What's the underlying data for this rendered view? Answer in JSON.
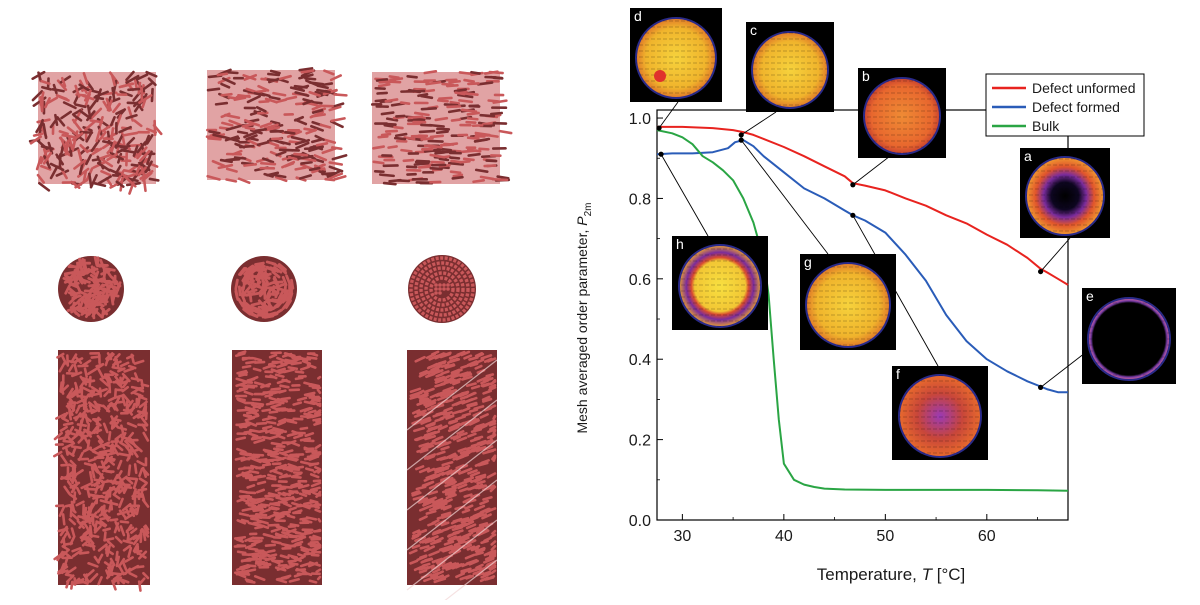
{
  "colors": {
    "rod": "#c9585a",
    "rod_dark": "#7a2e30",
    "defect_unformed": "#e8231f",
    "defect_formed": "#2a5cb8",
    "bulk": "#2aa544"
  },
  "chart_data": {
    "type": "line",
    "xlabel_text": "Temperature, ",
    "xlabel_var": "T",
    "xlabel_unit": " [°C]",
    "ylabel_text": "Mesh averaged order parameter, ",
    "ylabel_var": "P",
    "ylabel_sub": "2m",
    "xlim": [
      27.5,
      68
    ],
    "ylim": [
      0,
      1.02
    ],
    "xticks": [
      30,
      40,
      50,
      60
    ],
    "yticks": [
      0.0,
      0.2,
      0.4,
      0.6,
      0.8,
      1.0
    ],
    "legend_position": "top-right",
    "series": [
      {
        "name": "Defect unformed",
        "color_key": "defect_unformed",
        "x": [
          27.5,
          30,
          33,
          35,
          36,
          37,
          38,
          40,
          42,
          44,
          46,
          46.8,
          48,
          50,
          52,
          54,
          56,
          58,
          60,
          62,
          64,
          65.3,
          66,
          67,
          68
        ],
        "y": [
          0.978,
          0.978,
          0.975,
          0.97,
          0.965,
          0.958,
          0.948,
          0.928,
          0.905,
          0.88,
          0.855,
          0.838,
          0.832,
          0.82,
          0.8,
          0.782,
          0.758,
          0.738,
          0.71,
          0.685,
          0.652,
          0.625,
          0.615,
          0.6,
          0.585
        ]
      },
      {
        "name": "Defect formed",
        "color_key": "defect_formed",
        "x": [
          27.5,
          29,
          31,
          33,
          34.5,
          35.2,
          36,
          37,
          38,
          40,
          42,
          44,
          46,
          46.8,
          48,
          50,
          52,
          54,
          56,
          58,
          60,
          62,
          64,
          65.3,
          66,
          67,
          68
        ],
        "y": [
          0.91,
          0.912,
          0.912,
          0.915,
          0.925,
          0.94,
          0.945,
          0.93,
          0.905,
          0.865,
          0.825,
          0.8,
          0.77,
          0.758,
          0.745,
          0.715,
          0.66,
          0.595,
          0.51,
          0.445,
          0.4,
          0.37,
          0.345,
          0.332,
          0.325,
          0.318,
          0.318
        ]
      },
      {
        "name": "Bulk",
        "color_key": "bulk",
        "x": [
          27.5,
          29,
          30,
          31,
          32,
          33,
          34,
          35,
          36,
          37,
          38,
          38.5,
          39,
          39.5,
          40,
          41,
          42,
          43,
          44,
          46,
          50,
          55,
          60,
          65,
          68
        ],
        "y": [
          0.97,
          0.962,
          0.952,
          0.935,
          0.905,
          0.89,
          0.87,
          0.845,
          0.8,
          0.74,
          0.65,
          0.56,
          0.4,
          0.25,
          0.14,
          0.1,
          0.088,
          0.082,
          0.078,
          0.076,
          0.075,
          0.075,
          0.075,
          0.074,
          0.073
        ]
      }
    ],
    "insets": [
      {
        "label": "a",
        "kind": "hole"
      },
      {
        "label": "b",
        "kind": "orange"
      },
      {
        "label": "c",
        "kind": "yellow-disk"
      },
      {
        "label": "d",
        "kind": "yellow-disk"
      },
      {
        "label": "e",
        "kind": "ring"
      },
      {
        "label": "f",
        "kind": "purple-center"
      },
      {
        "label": "g",
        "kind": "yellow-disk"
      },
      {
        "label": "h",
        "kind": "yellow-ring"
      }
    ]
  }
}
